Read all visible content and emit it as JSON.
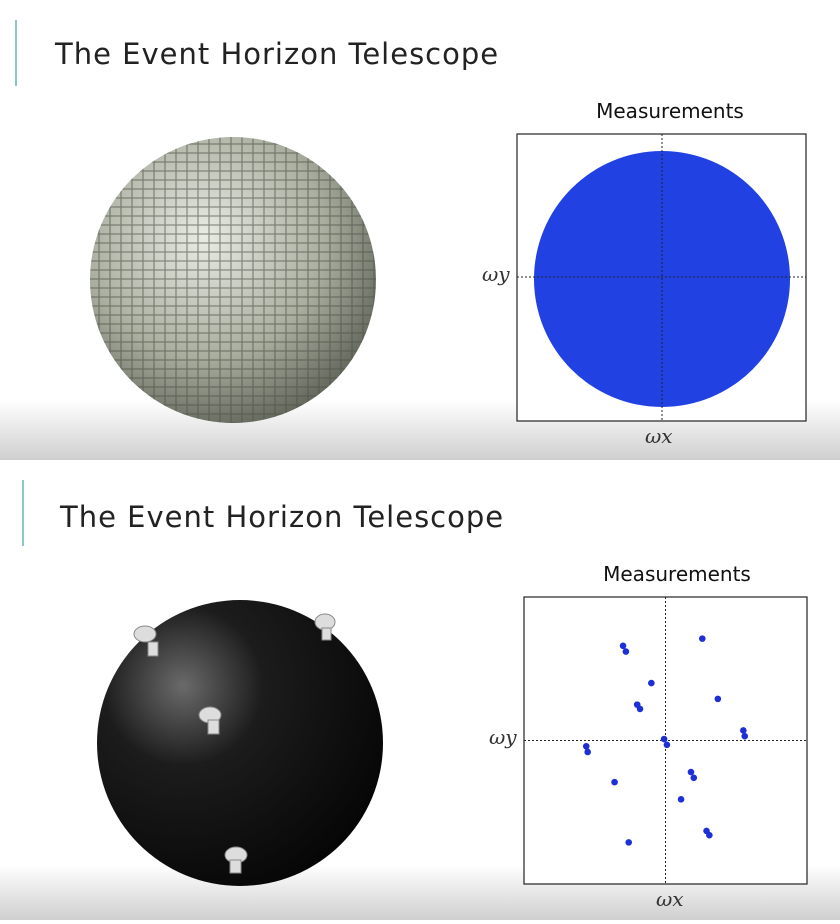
{
  "slides": [
    {
      "title": "The Event Horizon Telescope",
      "plot": {
        "title": "Measurements",
        "xlabel": "ωx",
        "ylabel": "ωy"
      }
    },
    {
      "title": "The Event Horizon Telescope",
      "plot": {
        "type": "scatter",
        "title": "Measurements",
        "xlabel": "ωx",
        "ylabel": "ωy",
        "color": "#1f2fd6",
        "xlim": [
          -1,
          1
        ],
        "ylim": [
          -1,
          1
        ],
        "x": [
          -0.3,
          -0.28,
          0.26,
          -0.1,
          -0.2,
          -0.18,
          0.37,
          0.55,
          0.56,
          -0.01,
          0.01,
          -0.56,
          -0.55,
          0.18,
          0.2,
          -0.36,
          0.11,
          0.29,
          0.31,
          -0.26
        ],
        "y": [
          0.66,
          0.62,
          0.71,
          0.4,
          0.25,
          0.22,
          0.29,
          0.07,
          0.03,
          0.01,
          -0.03,
          -0.04,
          -0.08,
          -0.22,
          -0.26,
          -0.29,
          -0.41,
          -0.63,
          -0.66,
          -0.71
        ]
      }
    }
  ]
}
